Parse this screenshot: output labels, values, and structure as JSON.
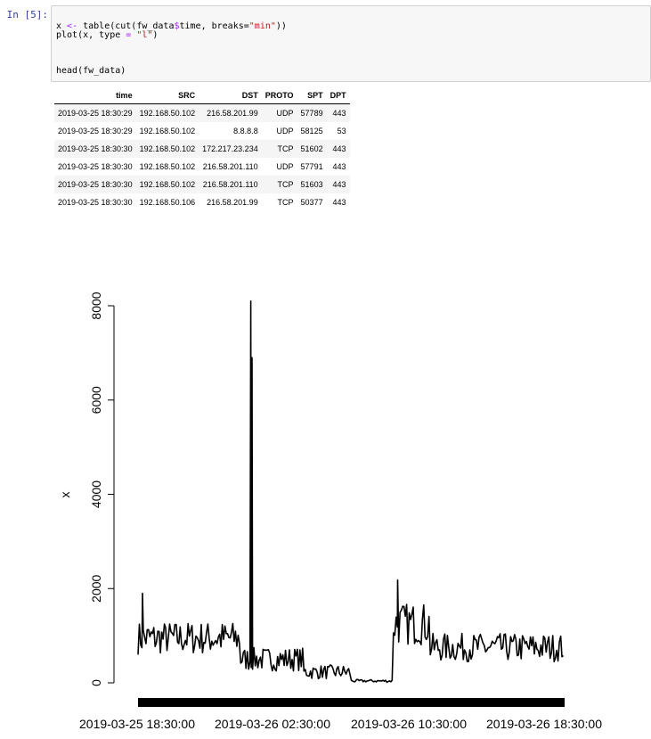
{
  "cell": {
    "prompt": "In [5]:",
    "code_lines": [
      [
        {
          "t": "x ",
          "c": ""
        },
        {
          "t": "<-",
          "c": "kw"
        },
        {
          "t": " table(cut(fw_data",
          "c": ""
        },
        {
          "t": "$",
          "c": "kw"
        },
        {
          "t": "time, breaks=",
          "c": ""
        },
        {
          "t": "\"min\"",
          "c": "str"
        },
        {
          "t": "))",
          "c": ""
        }
      ],
      [
        {
          "t": "plot(x, type ",
          "c": ""
        },
        {
          "t": "=",
          "c": "kw"
        },
        {
          "t": " ",
          "c": ""
        },
        {
          "t": "\"l\"",
          "c": "str"
        },
        {
          "t": ")",
          "c": ""
        }
      ],
      [],
      [],
      [],
      [
        {
          "t": "head(fw_data)",
          "c": ""
        }
      ]
    ]
  },
  "table": {
    "headers": [
      "time",
      "SRC",
      "DST",
      "PROTO",
      "SPT",
      "DPT"
    ],
    "rows": [
      [
        "2019-03-25 18:30:29",
        "192.168.50.102",
        "216.58.201.99",
        "UDP",
        "57789",
        "443"
      ],
      [
        "2019-03-25 18:30:29",
        "192.168.50.102",
        "8.8.8.8",
        "UDP",
        "58125",
        "53"
      ],
      [
        "2019-03-25 18:30:30",
        "192.168.50.102",
        "172.217.23.234",
        "TCP",
        "51602",
        "443"
      ],
      [
        "2019-03-25 18:30:30",
        "192.168.50.102",
        "216.58.201.110",
        "UDP",
        "57791",
        "443"
      ],
      [
        "2019-03-25 18:30:30",
        "192.168.50.102",
        "216.58.201.110",
        "TCP",
        "51603",
        "443"
      ],
      [
        "2019-03-25 18:30:30",
        "192.168.50.106",
        "216.58.201.99",
        "TCP",
        "50377",
        "443"
      ]
    ]
  },
  "chart_data": {
    "type": "line",
    "title": "",
    "xlabel": "",
    "ylabel": "x",
    "ylim": [
      0,
      8000
    ],
    "yticks": [
      0,
      2000,
      4000,
      6000,
      8000
    ],
    "xtick_labels": [
      "2019-03-25 18:30:00",
      "2019-03-26 02:30:00",
      "2019-03-26 10:30:00",
      "2019-03-26 18:30:00"
    ],
    "grid": false,
    "line_color": "#000000",
    "series_shape": [
      {
        "from": "2019-03-25 18:30",
        "to": "2019-03-26 01:00",
        "mean": 950,
        "noise": 350
      },
      {
        "from": "2019-03-26 01:00",
        "to": "2019-03-26 05:00",
        "mean": 500,
        "noise": 250
      },
      {
        "from": "2019-03-26 05:00",
        "to": "2019-03-26 08:00",
        "mean": 230,
        "noise": 150
      },
      {
        "from": "2019-03-26 08:00",
        "to": "2019-03-26 10:40",
        "mean": 40,
        "noise": 30
      },
      {
        "from": "2019-03-26 10:40",
        "to": "2019-03-26 13:00",
        "mean": 1250,
        "noise": 450
      },
      {
        "from": "2019-03-26 13:00",
        "to": "2019-03-26 21:30",
        "mean": 750,
        "noise": 300
      }
    ],
    "spikes": [
      {
        "time": "2019-03-25 18:47",
        "value": 1900
      },
      {
        "time": "2019-03-26 01:38",
        "value": 8100
      },
      {
        "time": "2019-03-26 01:43",
        "value": 6900
      },
      {
        "time": "2019-03-26 10:56",
        "value": 2180
      }
    ]
  }
}
